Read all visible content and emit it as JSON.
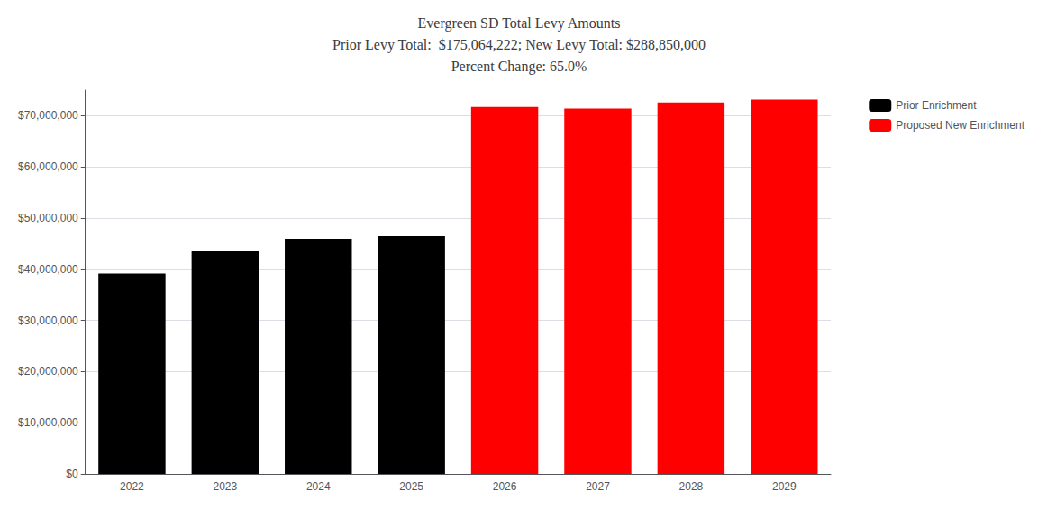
{
  "chart_data": {
    "type": "bar",
    "title": "Evergreen SD Total Levy Amounts\nPrior Levy Total:  $175,064,222; New Levy Total: $288,850,000\nPercent Change: 65.0%",
    "categories": [
      "2022",
      "2023",
      "2024",
      "2025",
      "2026",
      "2027",
      "2028",
      "2029"
    ],
    "series": [
      {
        "name": "Prior Enrichment",
        "color": "#000000",
        "values": [
          39155610,
          43476222,
          45932722,
          46499668,
          null,
          null,
          null,
          null
        ]
      },
      {
        "name": "Proposed New Enrichment",
        "color": "#ff0000",
        "values": [
          null,
          null,
          null,
          null,
          71712500,
          71412500,
          72562500,
          73162500
        ]
      }
    ],
    "ylim": [
      0,
      75000000
    ],
    "yticks": [
      {
        "value": 0,
        "label": "$0"
      },
      {
        "value": 10000000,
        "label": "$10,000,000"
      },
      {
        "value": 20000000,
        "label": "$20,000,000"
      },
      {
        "value": 30000000,
        "label": "$30,000,000"
      },
      {
        "value": 40000000,
        "label": "$40,000,000"
      },
      {
        "value": 50000000,
        "label": "$50,000,000"
      },
      {
        "value": 60000000,
        "label": "$60,000,000"
      },
      {
        "value": 70000000,
        "label": "$70,000,000"
      }
    ],
    "grid": true,
    "legend": "upper right"
  }
}
